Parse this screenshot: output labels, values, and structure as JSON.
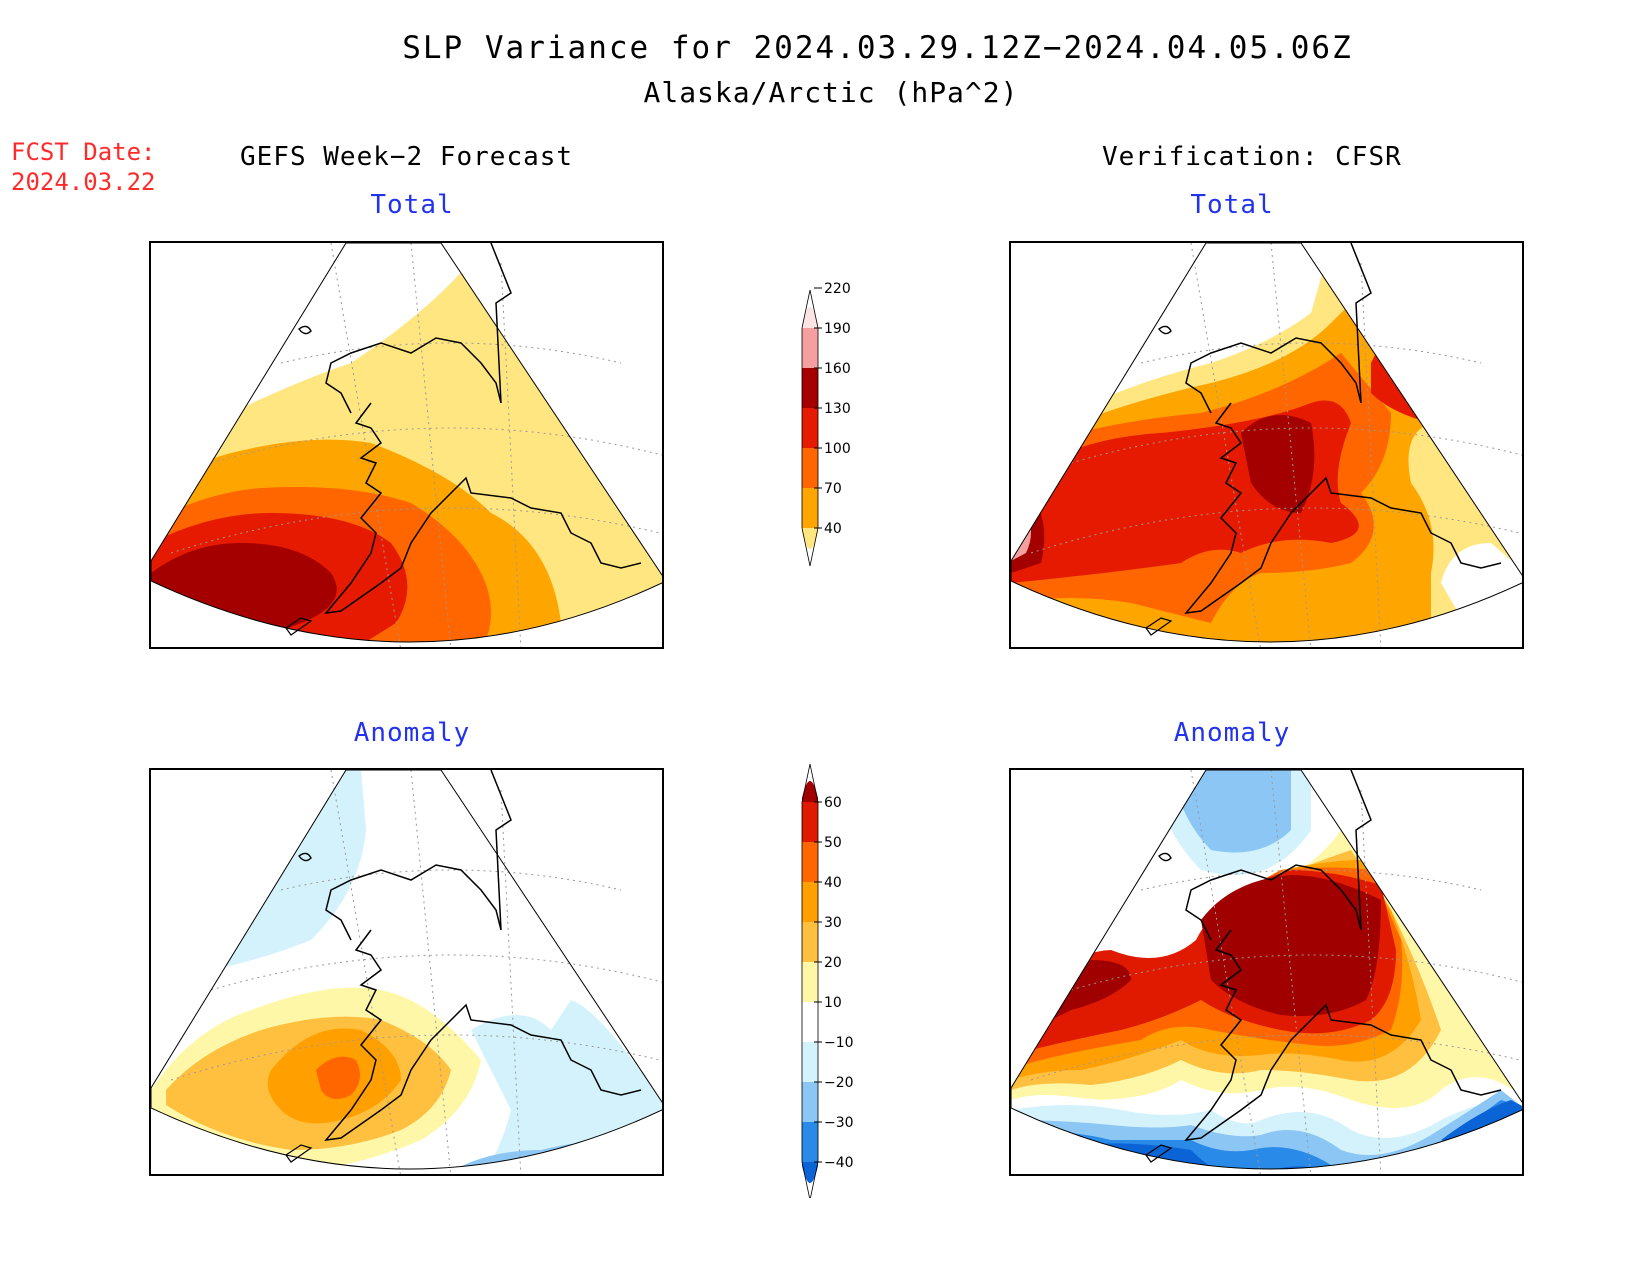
{
  "title": {
    "line1": "SLP Variance for 2024.03.29.12Z−2024.04.05.06Z",
    "line2": "Alaska/Arctic (hPa^2)"
  },
  "forecast_date": {
    "label": "FCST Date:",
    "value": "2024.03.22"
  },
  "columns": {
    "left": "GEFS Week−2 Forecast",
    "right": "Verification: CFSR"
  },
  "panels": {
    "upper_left": "Total",
    "upper_right": "Total",
    "lower_left": "Anomaly",
    "lower_right": "Anomaly"
  },
  "colorbars": {
    "total": {
      "levels": [
        "40",
        "70",
        "100",
        "130",
        "160",
        "190",
        "220"
      ],
      "colors": [
        "#ffe680",
        "#ffa500",
        "#ff6600",
        "#e61a00",
        "#a50000",
        "#f4a0a0",
        "#fde4e4"
      ]
    },
    "anomaly": {
      "levels": [
        "−40",
        "−30",
        "−20",
        "−10",
        "10",
        "20",
        "30",
        "40",
        "50",
        "60"
      ],
      "colors": [
        "#0a64d6",
        "#2a8ae8",
        "#8cc6f4",
        "#d4f2fc",
        "#ffffff",
        "#fff7a8",
        "#ffc040",
        "#ffa000",
        "#ff6600",
        "#e01a00",
        "#a00000"
      ]
    }
  },
  "palette": {
    "coast": "#000000",
    "grid": "#999999",
    "panel_title": "#2233ee",
    "fcst": "#ff2a2a"
  }
}
